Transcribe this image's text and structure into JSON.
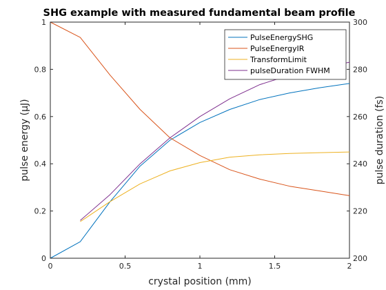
{
  "chart_data": {
    "type": "line",
    "title": "SHG example with measured fundamental beam profile",
    "xlabel": "crystal position (mm)",
    "ylabel_left": "pulse energy (μJ)",
    "ylabel_right": "pulse duration (fs)",
    "xlim": [
      0,
      2
    ],
    "ylim_left": [
      0,
      1
    ],
    "ylim_right": [
      200,
      300
    ],
    "x_ticks": [
      "0",
      "0.5",
      "1",
      "1.5",
      "2"
    ],
    "x_tick_values": [
      0,
      0.5,
      1,
      1.5,
      2
    ],
    "y_left_ticks": [
      "0",
      "0.2",
      "0.4",
      "0.6",
      "0.8",
      "1"
    ],
    "y_left_tick_values": [
      0,
      0.2,
      0.4,
      0.6,
      0.8,
      1
    ],
    "y_right_ticks": [
      "200",
      "220",
      "240",
      "260",
      "280",
      "300"
    ],
    "y_right_tick_values": [
      200,
      220,
      240,
      260,
      280,
      300
    ],
    "grid": false,
    "legend_position": "top-right",
    "series": [
      {
        "name": "PulseEnergySHG",
        "axis": "left",
        "color": "#0072BD",
        "x": [
          0,
          0.2,
          0.4,
          0.6,
          0.8,
          1.0,
          1.2,
          1.4,
          1.6,
          1.8,
          2.0
        ],
        "y": [
          0,
          0.07,
          0.24,
          0.39,
          0.5,
          0.575,
          0.63,
          0.672,
          0.7,
          0.722,
          0.74
        ]
      },
      {
        "name": "PulseEnergyIR",
        "axis": "left",
        "color": "#D95319",
        "x": [
          0,
          0.2,
          0.4,
          0.6,
          0.8,
          1.0,
          1.2,
          1.4,
          1.6,
          1.8,
          2.0
        ],
        "y": [
          1.0,
          0.935,
          0.775,
          0.63,
          0.51,
          0.435,
          0.375,
          0.335,
          0.305,
          0.285,
          0.265
        ]
      },
      {
        "name": "TransformLimit",
        "axis": "left",
        "color": "#EDB120",
        "x": [
          0.2,
          0.4,
          0.6,
          0.8,
          1.0,
          1.2,
          1.4,
          1.6,
          1.8,
          2.0
        ],
        "y": [
          0.155,
          0.24,
          0.315,
          0.37,
          0.405,
          0.428,
          0.438,
          0.444,
          0.447,
          0.45
        ]
      },
      {
        "name": "pulseDuration FWHM",
        "axis": "right",
        "color": "#7E2F8E",
        "x": [
          0.2,
          0.4,
          0.6,
          0.8,
          1.0,
          1.2,
          1.4,
          1.6,
          1.8,
          2.0
        ],
        "y": [
          216,
          227,
          240,
          251,
          260,
          267.5,
          273.5,
          277.5,
          280.5,
          283
        ]
      }
    ]
  }
}
